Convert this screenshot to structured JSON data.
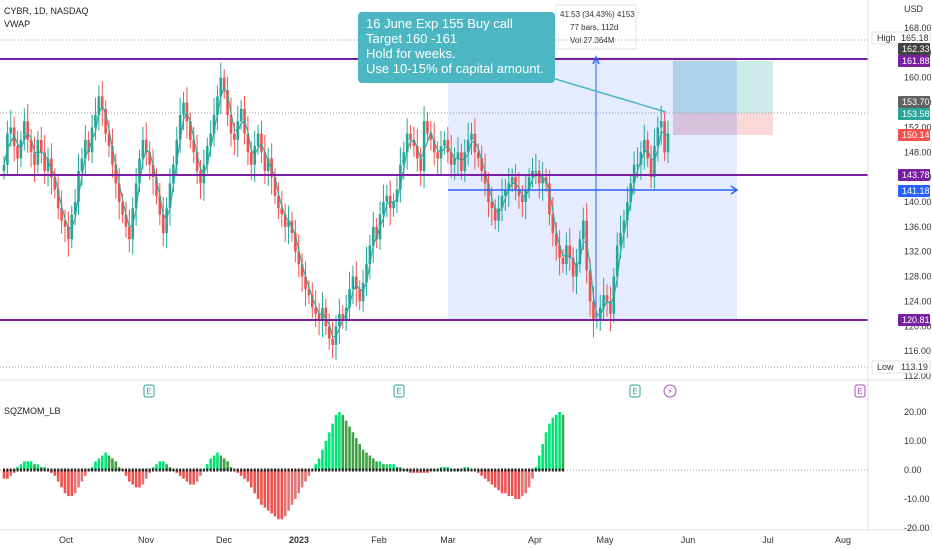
{
  "header": {
    "symbol_line": "CYBR, 1D, NASDAQ",
    "indicator": "VWAP"
  },
  "currency": "USD",
  "annotation": {
    "lines": [
      "16 June Exp 155 Buy call",
      "Target 160 -161",
      "Hold for weeks.",
      "Use 10-15% of capital amount."
    ]
  },
  "measure_stats": [
    "41.53 (34.43%) 4153",
    "77 bars, 112d",
    "Vol 27.364M"
  ],
  "oscillator_label": "SQZMOM_LB",
  "colors": {
    "up": "#26a69a",
    "down": "#ef5350",
    "level": "#7b1fa2",
    "blue": "#2962ff",
    "note": "#4cb6c2"
  },
  "chart_data": {
    "type": "candlestick",
    "price_axis": {
      "ylim": [
        112,
        170
      ],
      "ticks": [
        "168.00",
        "164.00",
        "160.00",
        "156.00",
        "152.00",
        "148.00",
        "144.00",
        "140.00",
        "136.00",
        "132.00",
        "128.00",
        "124.00",
        "120.00",
        "116.00",
        "112.00"
      ]
    },
    "time_axis": {
      "labels": [
        "Oct",
        "Nov",
        "Dec",
        "2023",
        "Feb",
        "Mar",
        "Apr",
        "May",
        "Jun",
        "Jul",
        "Aug"
      ]
    },
    "levels": [
      161.88,
      143.78,
      120.81
    ],
    "blue_level": 141.18,
    "price_tags": [
      {
        "label": "High",
        "value": "165.18",
        "kind": "plain"
      },
      {
        "label": "",
        "value": "162.33",
        "kind": "dark"
      },
      {
        "label": "",
        "value": "161.88",
        "kind": "purple"
      },
      {
        "label": "",
        "value": "153.70",
        "kind": "gray"
      },
      {
        "label": "",
        "value": "153.58",
        "kind": "teal"
      },
      {
        "label": "",
        "value": "150.14",
        "kind": "red"
      },
      {
        "label": "",
        "value": "143.78",
        "kind": "purple"
      },
      {
        "label": "",
        "value": "141.18",
        "kind": "blue"
      },
      {
        "label": "",
        "value": "120.81",
        "kind": "purple"
      },
      {
        "label": "Low",
        "value": "113.19",
        "kind": "plain"
      }
    ],
    "position": {
      "entry": 153.58,
      "target": 161.88,
      "stop": 150.14
    },
    "earnings_marker": "E",
    "dividend_marker": "⚡",
    "closes": [
      146,
      151,
      152,
      149,
      147,
      150,
      153,
      150,
      148,
      146,
      150,
      148,
      145,
      147,
      144,
      142,
      139,
      137,
      136,
      134,
      138,
      140,
      145,
      147,
      150,
      148,
      152,
      154,
      157,
      155,
      151,
      149,
      146,
      143,
      140,
      138,
      136,
      134,
      139,
      143,
      147,
      150,
      148,
      146,
      144,
      141,
      138,
      135,
      139,
      143,
      146,
      150,
      154,
      156,
      153,
      150,
      148,
      145,
      143,
      146,
      149,
      151,
      154,
      157,
      160,
      158,
      154,
      151,
      150,
      153,
      155,
      151,
      148,
      146,
      149,
      151,
      148,
      145,
      147,
      144,
      141,
      139,
      138,
      136,
      137,
      135,
      132,
      130,
      128,
      126,
      125,
      123,
      122,
      121,
      123,
      120,
      118,
      117,
      120,
      122,
      121,
      123,
      126,
      128,
      126,
      124,
      127,
      130,
      133,
      136,
      134,
      138,
      140,
      141,
      139,
      140,
      142,
      146,
      148,
      151,
      150,
      149,
      147,
      145,
      153,
      151,
      150,
      148,
      147,
      149,
      150,
      148,
      146,
      147,
      148,
      145,
      148,
      150,
      151,
      148,
      147,
      145,
      143,
      140,
      139,
      137,
      139,
      141,
      142,
      143,
      144,
      142,
      141,
      140,
      142,
      144,
      145,
      145,
      143,
      144,
      143,
      138,
      135,
      133,
      131,
      130,
      133,
      131,
      128,
      130,
      134,
      137,
      129,
      124,
      121,
      121,
      123,
      125,
      124,
      122,
      128,
      133,
      135,
      137,
      140,
      143,
      146,
      146,
      148,
      150,
      147,
      144,
      149,
      152,
      153,
      148,
      151
    ],
    "squeeze_momentum": {
      "yticks": [
        "20.00",
        "10.00",
        "0.00",
        "-10.00",
        "-20.00"
      ],
      "ylim": [
        -22,
        24
      ],
      "values": [
        -3,
        -3,
        -2,
        -1,
        1,
        2,
        3,
        3,
        3,
        2,
        2,
        1,
        1,
        0,
        -1,
        -2,
        -4,
        -6,
        -8,
        -9,
        -9,
        -8,
        -6,
        -4,
        -2,
        0,
        1,
        3,
        4,
        5,
        6,
        5,
        4,
        3,
        1,
        0,
        -2,
        -4,
        -5,
        -6,
        -6,
        -5,
        -3,
        -1,
        1,
        2,
        3,
        3,
        2,
        1,
        0,
        -1,
        -2,
        -3,
        -4,
        -5,
        -5,
        -4,
        -2,
        0,
        2,
        4,
        5,
        6,
        5,
        4,
        3,
        1,
        0,
        -1,
        -2,
        -3,
        -4,
        -6,
        -8,
        -10,
        -12,
        -13,
        -14,
        -15,
        -16,
        -17,
        -17,
        -16,
        -14,
        -12,
        -10,
        -8,
        -6,
        -4,
        -2,
        0,
        2,
        4,
        7,
        10,
        13,
        16,
        19,
        20,
        19,
        17,
        15,
        13,
        11,
        9,
        7,
        6,
        5,
        4,
        3,
        3,
        2,
        2,
        2,
        2,
        1,
        1,
        0,
        0,
        -1,
        -1,
        -1,
        -1,
        -1,
        -1,
        0,
        0,
        0,
        1,
        1,
        1,
        0,
        0,
        0,
        0,
        1,
        1,
        0,
        0,
        -1,
        -2,
        -3,
        -4,
        -5,
        -6,
        -7,
        -8,
        -8,
        -9,
        -9,
        -10,
        -10,
        -9,
        -8,
        -6,
        -3,
        1,
        5,
        9,
        13,
        16,
        18,
        19,
        20,
        19
      ]
    }
  }
}
